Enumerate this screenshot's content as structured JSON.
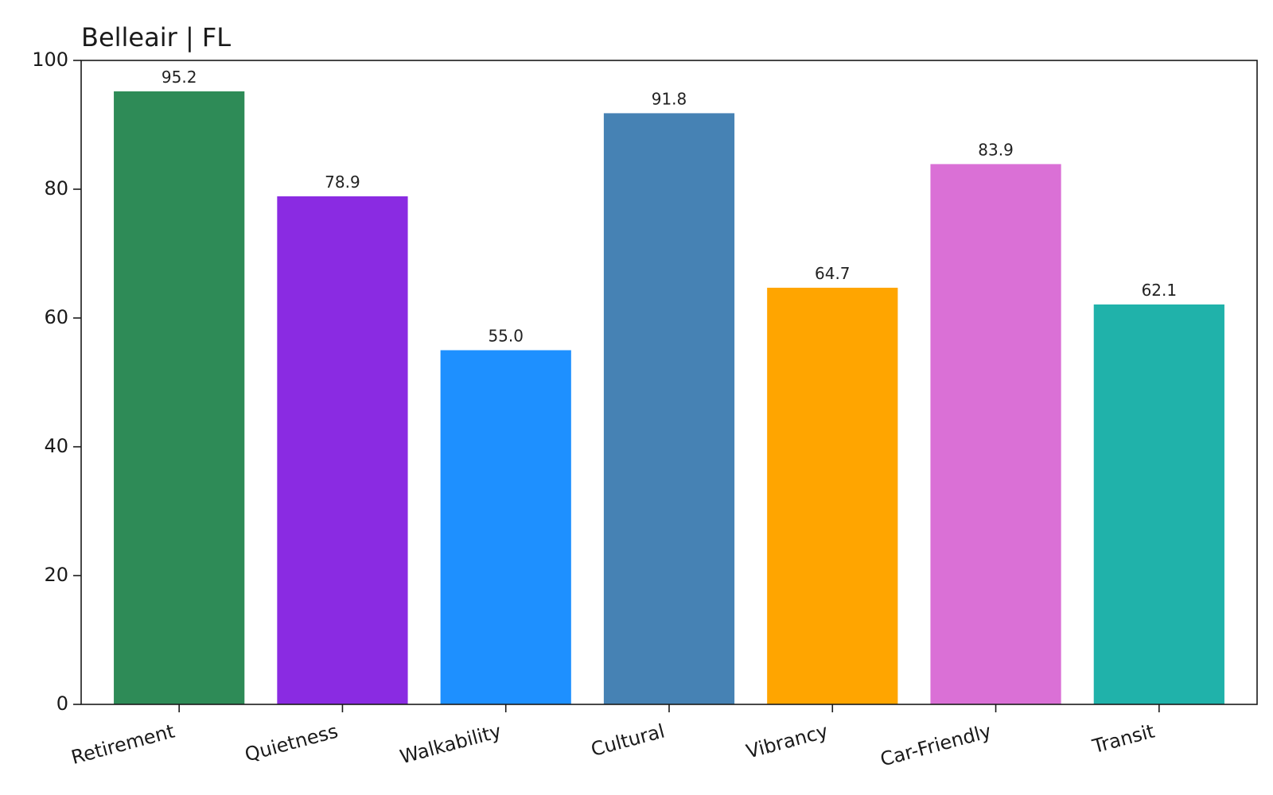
{
  "chart_data": {
    "type": "bar",
    "title": "Belleair | FL",
    "xlabel": "",
    "ylabel": "",
    "categories": [
      "Retirement",
      "Quietness",
      "Walkability",
      "Cultural",
      "Vibrancy",
      "Car-Friendly",
      "Transit"
    ],
    "values": [
      95.2,
      78.9,
      55.0,
      91.8,
      64.7,
      83.9,
      62.1
    ],
    "value_labels": [
      "95.2",
      "78.9",
      "55.0",
      "91.8",
      "64.7",
      "83.9",
      "62.1"
    ],
    "colors": [
      "#2e8b57",
      "#8a2be2",
      "#1e90ff",
      "#4682b4",
      "#ffa500",
      "#da70d6",
      "#20b2aa"
    ],
    "ylim": [
      0,
      100
    ],
    "yticks": [
      0,
      20,
      40,
      60,
      80,
      100
    ],
    "grid": false,
    "legend": "none"
  }
}
